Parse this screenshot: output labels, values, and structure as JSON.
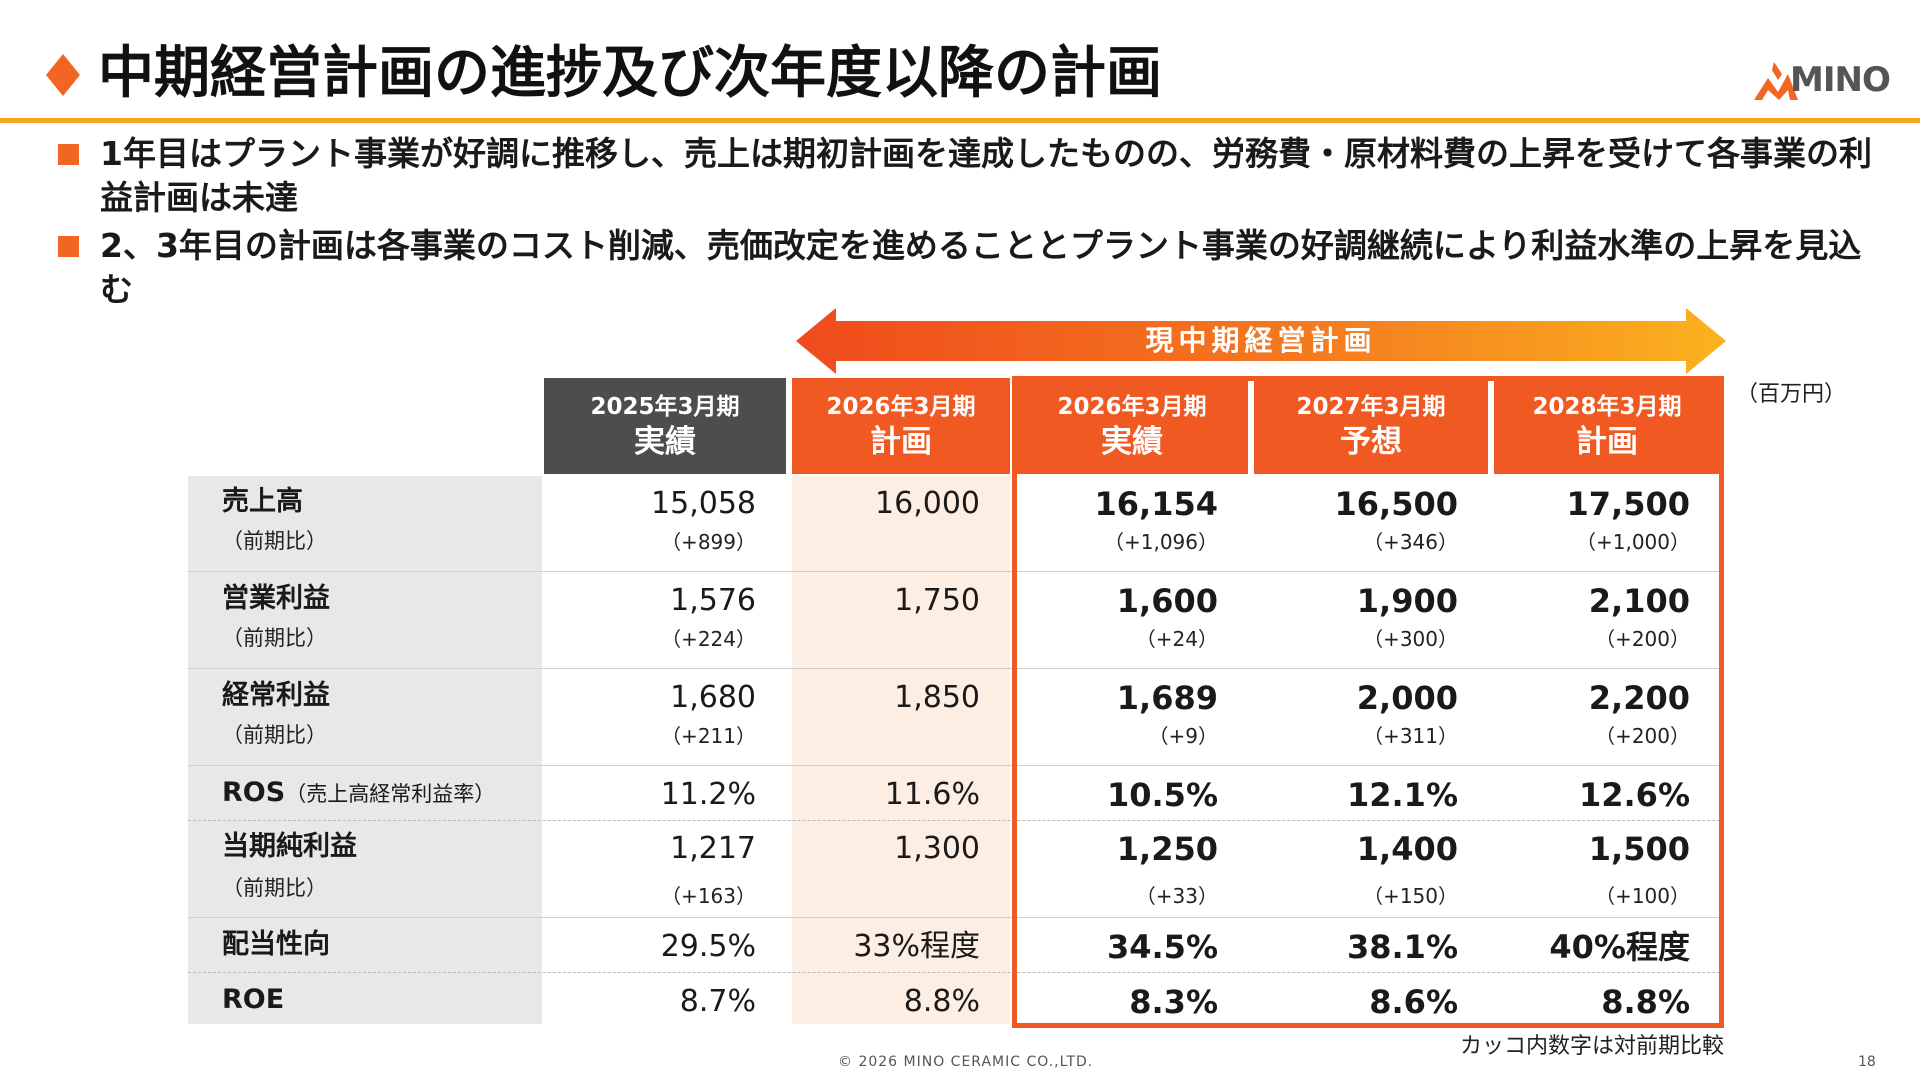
{
  "title": "中期経営計画の進捗及び次年度以降の計画",
  "brand": {
    "logo_text": "MINO",
    "accent": "#f26522",
    "rule_color": "#f5a623"
  },
  "bullets": [
    "1年目はプラント事業が好調に推移し、売上は期初計画を達成したものの、労務費・原材料費の上昇を受けて各事業の利益計画は未達",
    "2、3年目の計画は各事業のコスト削減、売価改定を進めることとプラント事業の好調継続により利益水準の上昇を見込む"
  ],
  "plan_banner": "現中期経営計画",
  "unit": "（百万円）",
  "columns": [
    {
      "year": "2025年3月期",
      "status": "実績",
      "color": "#4d4d4d"
    },
    {
      "year": "2026年3月期",
      "status": "計画",
      "color": "#f05a22"
    },
    {
      "year": "2026年3月期",
      "status": "実績",
      "color": "#f05a22"
    },
    {
      "year": "2027年3月期",
      "status": "予想",
      "color": "#f05a22"
    },
    {
      "year": "2028年3月期",
      "status": "計画",
      "color": "#f05a22"
    }
  ],
  "rows": [
    {
      "label": "売上高",
      "sub": "（前期比）",
      "values": [
        "15,058",
        "16,000",
        "16,154",
        "16,500",
        "17,500"
      ],
      "deltas": [
        "（+899）",
        "",
        "（+1,096）",
        "（+346）",
        "（+1,000）"
      ]
    },
    {
      "label": "営業利益",
      "sub": "（前期比）",
      "values": [
        "1,576",
        "1,750",
        "1,600",
        "1,900",
        "2,100"
      ],
      "deltas": [
        "（+224）",
        "",
        "（+24）",
        "（+300）",
        "（+200）"
      ]
    },
    {
      "label": "経常利益",
      "sub": "（前期比）",
      "values": [
        "1,680",
        "1,850",
        "1,689",
        "2,000",
        "2,200"
      ],
      "deltas": [
        "（+211）",
        "",
        "（+9）",
        "（+311）",
        "（+200）"
      ]
    },
    {
      "label": "ROS",
      "label_note": "（売上高経常利益率）",
      "values": [
        "11.2%",
        "11.6%",
        "10.5%",
        "12.1%",
        "12.6%"
      ]
    },
    {
      "label": "当期純利益",
      "sub": "（前期比）",
      "values": [
        "1,217",
        "1,300",
        "1,250",
        "1,400",
        "1,500"
      ],
      "deltas": [
        "（+163）",
        "",
        "（+33）",
        "（+150）",
        "（+100）"
      ]
    },
    {
      "label": "配当性向",
      "values": [
        "29.5%",
        "33%程度",
        "34.5%",
        "38.1%",
        "40%程度"
      ]
    },
    {
      "label": "ROE",
      "values": [
        "8.7%",
        "8.8%",
        "8.3%",
        "8.6%",
        "8.8%"
      ]
    }
  ],
  "footnote": "カッコ内数字は対前期比較",
  "copyright": "© 2026 MINO CERAMIC CO.,LTD.",
  "page_number": "18"
}
